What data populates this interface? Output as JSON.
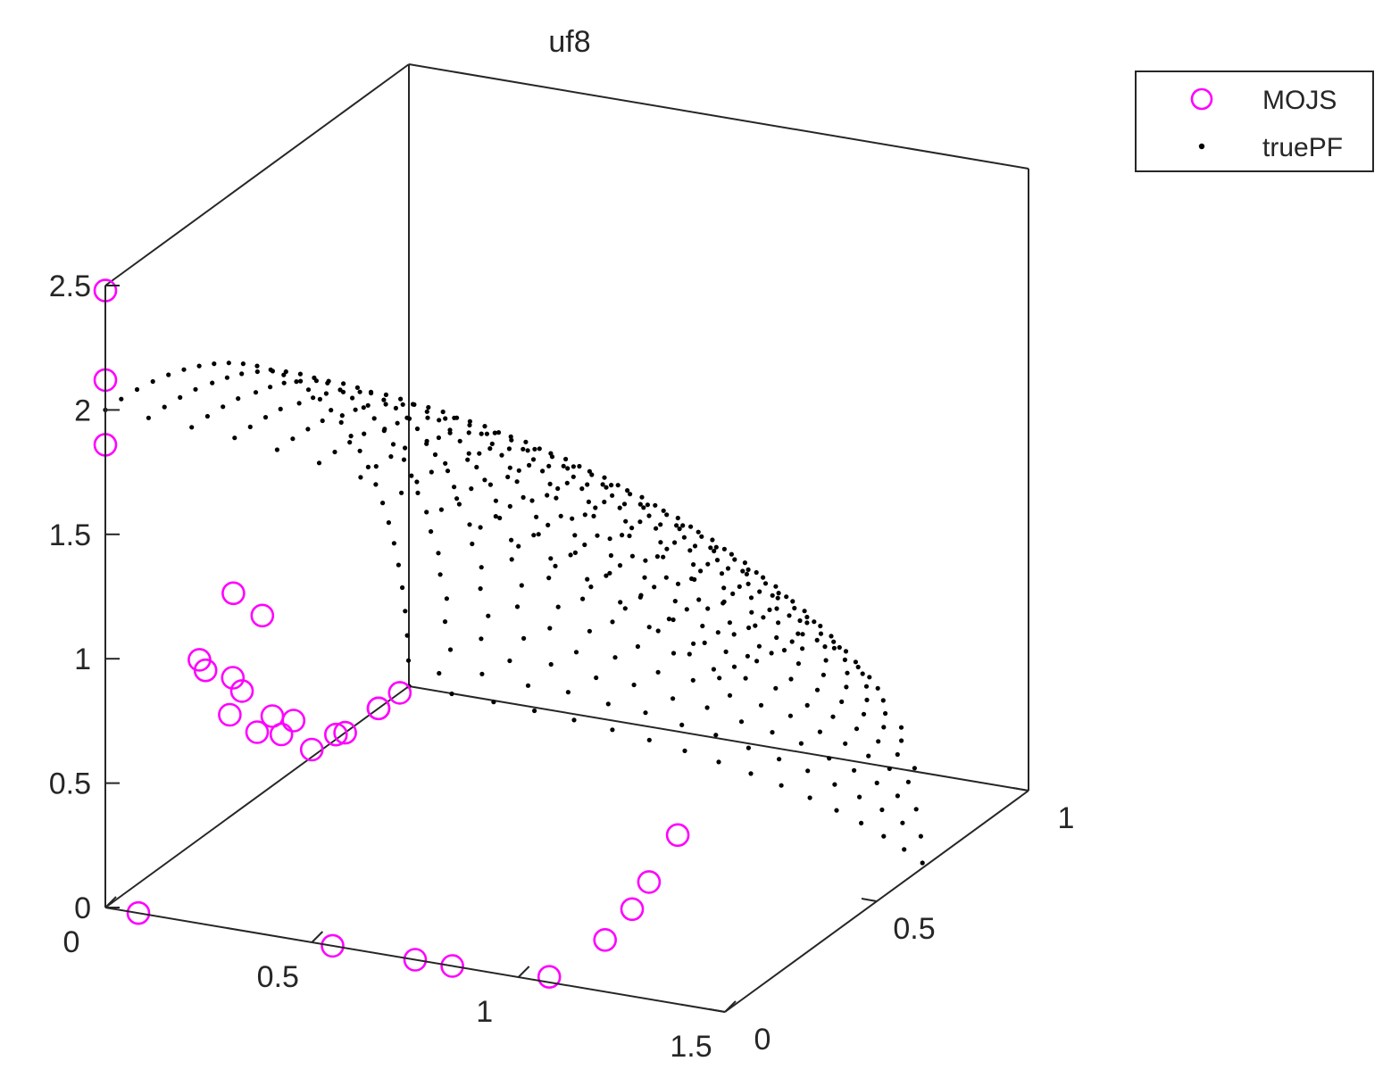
{
  "chart_data": {
    "type": "scatter3d",
    "title": "uf8",
    "xlabel": "",
    "ylabel": "",
    "zlabel": "",
    "xlim": [
      0,
      1.5
    ],
    "ylim": [
      0,
      1
    ],
    "zlim": [
      0,
      2.5
    ],
    "x_ticks": [
      "0",
      "0.5",
      "1",
      "1.5"
    ],
    "y_ticks": [
      "0",
      "0.5",
      "1"
    ],
    "z_ticks": [
      "0",
      "0.5",
      "1",
      "1.5",
      "2",
      "2.5"
    ],
    "grid": false,
    "legend_position": "top-right, outside",
    "colors": {
      "mojs": "#ff00ff",
      "truepf": "#000000",
      "axis": "#262626"
    },
    "series": [
      {
        "name": "MOJS",
        "marker": "circle",
        "points": [
          [
            0.0,
            0.0,
            2.48
          ],
          [
            0.0,
            0.0,
            2.12
          ],
          [
            0.0,
            0.0,
            1.86
          ],
          [
            0.31,
            0.0,
            1.35
          ],
          [
            0.38,
            0.0,
            1.28
          ],
          [
            0.47,
            0.12,
            0.72
          ],
          [
            0.0,
            0.31,
            0.72
          ],
          [
            0.0,
            0.42,
            0.55
          ],
          [
            0.0,
            0.33,
            0.66
          ],
          [
            0.0,
            0.45,
            0.47
          ],
          [
            0.0,
            0.41,
            0.41
          ],
          [
            0.0,
            0.55,
            0.28
          ],
          [
            0.0,
            0.58,
            0.18
          ],
          [
            0.0,
            0.68,
            0.03
          ],
          [
            0.0,
            0.79,
            0.0
          ],
          [
            0.0,
            0.9,
            0.0
          ],
          [
            0.0,
            0.9,
            0.0
          ],
          [
            0.0,
            0.5,
            0.26
          ],
          [
            0.0,
            0.62,
            0.2
          ],
          [
            0.0,
            0.97,
            0.0
          ],
          [
            0.08,
            0.0,
            0.0
          ],
          [
            0.55,
            0.0,
            0.0
          ],
          [
            0.75,
            0.0,
            0.0
          ],
          [
            0.84,
            0.0,
            0.0
          ],
          [
            1.06,
            0.02,
            0.0
          ],
          [
            1.07,
            0.19,
            0.0
          ],
          [
            1.04,
            0.32,
            0.0
          ],
          [
            1.0,
            0.43,
            0.0
          ],
          [
            0.93,
            0.62,
            0.0
          ]
        ]
      },
      {
        "name": "truePF",
        "marker": "point",
        "surface": "f1^2/4 + f2^2 + f3^2/4 = 1, f1,f2,f3 >= 0",
        "grid_steps": 30
      }
    ]
  }
}
